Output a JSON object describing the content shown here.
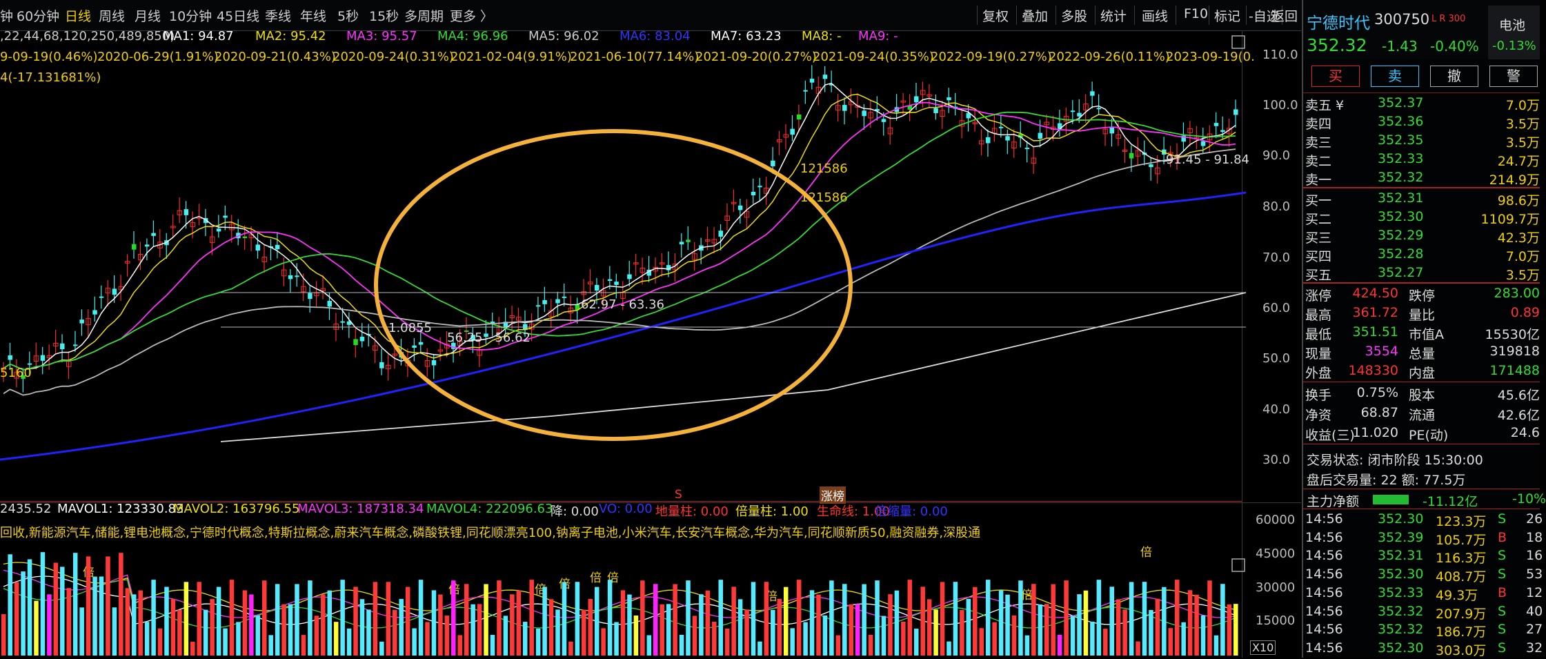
{
  "toolbar": {
    "periods": [
      "钟",
      "60分钟",
      "日线",
      "周线",
      "月线",
      "10分钟",
      "45日线",
      "季线",
      "年线",
      "5秒",
      "15秒",
      "多周期",
      "更多 〉"
    ],
    "active": "日线",
    "buttons": [
      "复权",
      "叠加",
      "多股",
      "统计",
      "画线",
      "F10",
      "标记",
      "-自选",
      "返回"
    ]
  },
  "ma_legend": [
    {
      "text": ",22,44,68,120,250,489,850)",
      "color": "#cccccc"
    },
    {
      "text": "MA1: 94.87",
      "color": "#ffffff"
    },
    {
      "text": "MA2: 95.42",
      "color": "#f0e000"
    },
    {
      "text": "MA3: 95.57",
      "color": "#ff33ff"
    },
    {
      "text": "MA4: 96.96",
      "color": "#33dd33"
    },
    {
      "text": "MA5: 96.02",
      "color": "#cccccc"
    },
    {
      "text": "MA6: 83.04",
      "color": "#3333ff"
    },
    {
      "text": "MA7: 63.23",
      "color": "#ffffff"
    },
    {
      "text": "MA8: -",
      "color": "#f0e000"
    },
    {
      "text": "MA9: -",
      "color": "#ff33ff"
    }
  ],
  "events": [
    "9-09-19(0.46%)",
    "2020-06-29(1.91%)",
    "2020-09-21(0.43%)",
    "2020-09-24(0.31%)",
    "2021-02-04(9.91%)",
    "2021-06-10(77.14%)",
    "2021-09-20(0.27%)",
    "2021-09-24(0.35%)",
    "2022-09-19(0.27%)",
    "2022-09-26(0.11%)",
    "2023-09-19(0."
  ],
  "event2": "4(-17.131681%)",
  "price_axis": [
    "110.0",
    "100.0",
    "90.0",
    "80.0",
    "70.0",
    "60.0",
    "50.0",
    "40.0",
    "30.0"
  ],
  "annotations": {
    "a1": "1.0855",
    "a2": "56.25 - 56.62",
    "a3": "62.97 - 63.36",
    "a4": "121586",
    "a5": "91.45 - 91.84",
    "a6": "5160",
    "s_mark": "S",
    "zb_mark": "涨榜"
  },
  "vol_legend": [
    {
      "text": "2435.52",
      "color": "#cccccc"
    },
    {
      "text": "MAVOL1: 123330.83",
      "color": "#ffffff"
    },
    {
      "text": "MAVOL2: 163796.55",
      "color": "#f0e000"
    },
    {
      "text": "MAVOL3: 187318.34",
      "color": "#ff33ff"
    },
    {
      "text": "MAVOL4: 222096.63",
      "color": "#33dd33"
    },
    {
      "text": "降: 0.00",
      "color": "#cccccc"
    },
    {
      "text": "VO: 0.00",
      "color": "#3333ff"
    },
    {
      "text": "地量柱: 0.00",
      "color": "#ff3333"
    },
    {
      "text": "倍量柱: 1.00",
      "color": "#f0e000"
    },
    {
      "text": "生命线: 1.00",
      "color": "#ff3333"
    },
    {
      "text": "倍缩量: 0.00",
      "color": "#3333ff"
    }
  ],
  "concepts": "回收,新能源汽车,储能,锂电池概念,宁德时代概念,特斯拉概念,蔚来汽车概念,磷酸铁锂,同花顺漂亮100,钠离子电池,小米汽车,长安汽车概念,华为汽车,同花顺新质50,融资融券,深股通",
  "vol_axis": [
    "60000",
    "45000",
    "30000",
    "15000",
    "X10"
  ],
  "bei_label": "倍",
  "stock": {
    "name": "宁德时代",
    "code": "300750",
    "tags": "L R 300",
    "price": "352.32",
    "change": "-1.43",
    "pct": "-0.40%",
    "sector": "电池",
    "sector_pct": "-0.13%"
  },
  "trade_buttons": [
    "买",
    "卖",
    "撤",
    "警"
  ],
  "asks": [
    {
      "label": "卖五 ¥",
      "price": "352.37",
      "vol": "7.0万"
    },
    {
      "label": "卖四",
      "price": "352.36",
      "vol": "3.5万"
    },
    {
      "label": "卖三",
      "price": "352.35",
      "vol": "3.5万"
    },
    {
      "label": "卖二",
      "price": "352.33",
      "vol": "24.7万"
    },
    {
      "label": "卖一",
      "price": "352.32",
      "vol": "214.9万"
    }
  ],
  "bids": [
    {
      "label": "买一",
      "price": "352.31",
      "vol": "98.6万"
    },
    {
      "label": "买二",
      "price": "352.30",
      "vol": "1109.7万"
    },
    {
      "label": "买三",
      "price": "352.29",
      "vol": "42.3万"
    },
    {
      "label": "买四",
      "price": "352.28",
      "vol": "7.0万"
    },
    {
      "label": "买五",
      "price": "352.27",
      "vol": "3.5万"
    }
  ],
  "stats": [
    {
      "l1": "涨停",
      "v1": "424.50",
      "c1": "#ff3333",
      "l2": "跌停",
      "v2": "283.00",
      "c2": "#33dd33"
    },
    {
      "l1": "最高",
      "v1": "361.72",
      "c1": "#ff3333",
      "l2": "量比",
      "v2": "0.89",
      "c2": "#ff3333"
    },
    {
      "l1": "最低",
      "v1": "351.51",
      "c1": "#33dd33",
      "l2": "市值A",
      "v2": "15530亿",
      "c2": "#dddddd"
    },
    {
      "l1": "现量",
      "v1": "3554",
      "c1": "#ff33ff",
      "l2": "总量",
      "v2": "319818",
      "c2": "#dddddd"
    },
    {
      "l1": "外盘",
      "v1": "148330",
      "c1": "#ff3333",
      "l2": "内盘",
      "v2": "171488",
      "c2": "#33dd33"
    }
  ],
  "stats2": [
    {
      "l1": "换手",
      "v1": "0.75%",
      "l2": "股本",
      "v2": "45.6亿"
    },
    {
      "l1": "净资",
      "v1": "68.87",
      "l2": "流通",
      "v2": "42.6亿"
    },
    {
      "l1": "收益(三)",
      "v1": "11.020",
      "l2": "PE(动)",
      "v2": "24.6"
    }
  ],
  "trade_status": "交易状态: 闭市阶段 15:30:00",
  "after_hours": "盘后交易量: 22  额: 77.5万",
  "main_flow": {
    "label": "主力净额",
    "value": "-11.12亿",
    "pct": "-10%"
  },
  "ticks": [
    {
      "t": "14:56",
      "p": "352.30",
      "v": "123.3万",
      "s": "S",
      "n": "26"
    },
    {
      "t": "14:56",
      "p": "352.39",
      "v": "105.7万",
      "s": "B",
      "n": "18"
    },
    {
      "t": "14:56",
      "p": "352.31",
      "v": "116.3万",
      "s": "S",
      "n": "16"
    },
    {
      "t": "14:56",
      "p": "352.30",
      "v": "408.7万",
      "s": "S",
      "n": "53"
    },
    {
      "t": "14:56",
      "p": "352.33",
      "v": "49.3万",
      "s": "B",
      "n": "12"
    },
    {
      "t": "14:56",
      "p": "352.32",
      "v": "207.9万",
      "s": "S",
      "n": "40"
    },
    {
      "t": "14:56",
      "p": "352.32",
      "v": "186.7万",
      "s": "S",
      "n": "27"
    },
    {
      "t": "14:56",
      "p": "352.30",
      "v": "303.0万",
      "s": "S",
      "n": "32"
    }
  ]
}
